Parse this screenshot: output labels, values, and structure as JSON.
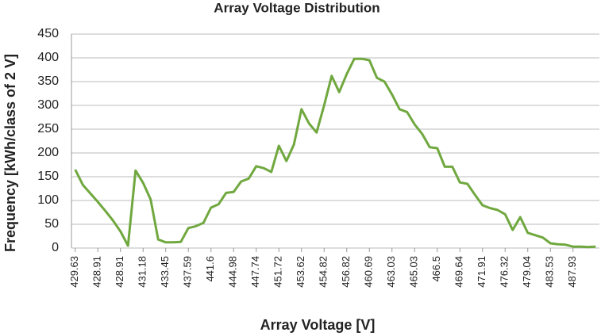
{
  "chart_data": {
    "type": "line",
    "title": "Array Voltage Distribution",
    "x_label": "Array Voltage [V]",
    "y_label": "Frequency [kWh/class of 2 V]",
    "categories": [
      "429.63",
      null,
      null,
      "428.91",
      null,
      null,
      "428.91",
      null,
      null,
      "431.18",
      null,
      null,
      "433.45",
      null,
      null,
      "437.59",
      null,
      null,
      "441.6",
      null,
      null,
      "444.98",
      null,
      null,
      "447.74",
      null,
      null,
      "451.72",
      null,
      null,
      "453.62",
      null,
      null,
      "454.82",
      null,
      null,
      "456.82",
      null,
      null,
      "460.69",
      null,
      null,
      "463.03",
      null,
      null,
      "465.03",
      null,
      null,
      "466.5",
      null,
      null,
      "469.64",
      null,
      null,
      "471.91",
      null,
      null,
      "476.32",
      null,
      null,
      "479.04",
      null,
      null,
      "483.53",
      null,
      null,
      "487.93",
      null,
      null,
      null
    ],
    "values": [
      165,
      133,
      115,
      97,
      78,
      58,
      35,
      5,
      163,
      137,
      102,
      18,
      12,
      12,
      13,
      42,
      46,
      53,
      85,
      92,
      116,
      118,
      140,
      146,
      172,
      168,
      160,
      215,
      183,
      218,
      292,
      262,
      243,
      300,
      362,
      328,
      366,
      398,
      398,
      395,
      358,
      350,
      323,
      292,
      286,
      260,
      240,
      212,
      210,
      171,
      171,
      138,
      135,
      112,
      90,
      84,
      80,
      71,
      38,
      65,
      32,
      27,
      22,
      10,
      8,
      7,
      3,
      3,
      2,
      3
    ],
    "color": "#70a83f",
    "ylim": [
      0,
      450
    ],
    "yticks": [
      0,
      50,
      100,
      150,
      200,
      250,
      300,
      350,
      400,
      450
    ],
    "grid": true
  }
}
